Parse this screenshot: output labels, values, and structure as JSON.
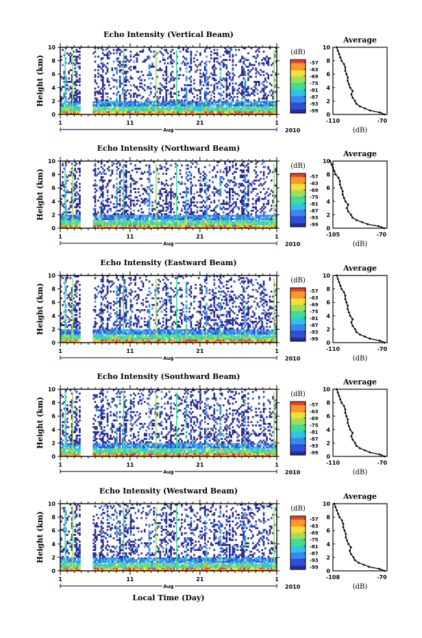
{
  "chart_data": [
    {
      "type": "heatmap",
      "title": "Echo Intensity (Vertical Beam)",
      "ylabel": "Height (km)",
      "ylim": [
        0,
        10
      ],
      "yticks": [
        "0",
        "2",
        "4",
        "6",
        "8",
        "10"
      ],
      "xticks": [
        "1",
        "11",
        "21",
        "1"
      ],
      "month_label": "Aug",
      "year_label": "2010",
      "colorbar": {
        "unit": "(dB)",
        "ticks": [
          "-57",
          "-63",
          "-69",
          "-75",
          "-81",
          "-87",
          "-93",
          "-99"
        ]
      },
      "average": {
        "title": "Average",
        "xlabel": "(dB)",
        "xticks": [
          "-110",
          "-70"
        ],
        "xlim": [
          -110,
          -66
        ],
        "yticks": [
          "0",
          "2",
          "4",
          "6",
          "8",
          "10"
        ],
        "ylim": [
          0,
          10
        ]
      }
    },
    {
      "type": "heatmap",
      "title": "Echo Intensity (Northward Beam)",
      "ylabel": "Height (km)",
      "ylim": [
        0,
        10
      ],
      "yticks": [
        "0",
        "2",
        "4",
        "6",
        "8",
        "10"
      ],
      "xticks": [
        "1",
        "11",
        "21",
        "1"
      ],
      "month_label": "Aug",
      "year_label": "2010",
      "colorbar": {
        "unit": "(dB)",
        "ticks": [
          "-57",
          "-63",
          "-69",
          "-75",
          "-81",
          "-87",
          "-93",
          "-99"
        ]
      },
      "average": {
        "title": "Average",
        "xlabel": "(dB)",
        "xticks": [
          "-105",
          "-70"
        ],
        "xlim": [
          -105,
          -66
        ],
        "yticks": [
          "0",
          "2",
          "4",
          "6",
          "8",
          "10"
        ],
        "ylim": [
          0,
          10
        ]
      }
    },
    {
      "type": "heatmap",
      "title": "Echo Intensity (Eastward Beam)",
      "ylabel": "Height (km)",
      "ylim": [
        0,
        10
      ],
      "yticks": [
        "0",
        "2",
        "4",
        "6",
        "8",
        "10"
      ],
      "xticks": [
        "1",
        "11",
        "21",
        "1"
      ],
      "month_label": "Aug",
      "year_label": "2010",
      "colorbar": {
        "unit": "(dB)",
        "ticks": [
          "-57",
          "-63",
          "-69",
          "-75",
          "-81",
          "-87",
          "-93",
          "-99"
        ]
      },
      "average": {
        "title": "Average",
        "xlabel": "(dB)",
        "xticks": [
          "-110",
          "-70"
        ],
        "xlim": [
          -110,
          -66
        ],
        "yticks": [
          "0",
          "2",
          "4",
          "6",
          "8",
          "10"
        ],
        "ylim": [
          0,
          10
        ]
      }
    },
    {
      "type": "heatmap",
      "title": "Echo Intensity (Southward Beam)",
      "ylabel": "Height (km)",
      "ylim": [
        0,
        10
      ],
      "yticks": [
        "0",
        "2",
        "4",
        "6",
        "8",
        "10"
      ],
      "xticks": [
        "1",
        "11",
        "21",
        "1"
      ],
      "month_label": "Aug",
      "year_label": "2010",
      "colorbar": {
        "unit": "(dB)",
        "ticks": [
          "-57",
          "-63",
          "-69",
          "-75",
          "-81",
          "-87",
          "-93",
          "-99"
        ]
      },
      "average": {
        "title": "Average",
        "xlabel": "(dB)",
        "xticks": [
          "-110",
          "-70"
        ],
        "xlim": [
          -110,
          -66
        ],
        "yticks": [
          "0",
          "2",
          "4",
          "6",
          "8",
          "10"
        ],
        "ylim": [
          0,
          10
        ]
      }
    },
    {
      "type": "heatmap",
      "title": "Echo Intensity (Westward Beam)",
      "ylabel": "Height (km)",
      "ylim": [
        0,
        10
      ],
      "yticks": [
        "0",
        "2",
        "4",
        "6",
        "8",
        "10"
      ],
      "xticks": [
        "1",
        "11",
        "21",
        "1"
      ],
      "month_label": "Aug",
      "year_label": "2010",
      "colorbar": {
        "unit": "(dB)",
        "ticks": [
          "-57",
          "-63",
          "-69",
          "-75",
          "-81",
          "-87",
          "-93",
          "-99"
        ]
      },
      "average": {
        "title": "Average",
        "xlabel": "(dB)",
        "xticks": [
          "-108",
          "-70"
        ],
        "xlim": [
          -108,
          -66
        ],
        "yticks": [
          "0",
          "2",
          "4",
          "6",
          "8",
          "10"
        ],
        "ylim": [
          0,
          10
        ]
      }
    }
  ],
  "average_profile": [
    [
      0.0,
      -68
    ],
    [
      0.3,
      -72
    ],
    [
      0.6,
      -80
    ],
    [
      0.9,
      -84
    ],
    [
      1.2,
      -88
    ],
    [
      1.6,
      -91
    ],
    [
      2.0,
      -92
    ],
    [
      2.5,
      -94
    ],
    [
      3.0,
      -95
    ],
    [
      3.5,
      -94
    ],
    [
      4.0,
      -96
    ],
    [
      4.5,
      -97
    ],
    [
      5.0,
      -98
    ],
    [
      5.5,
      -98
    ],
    [
      6.0,
      -99
    ],
    [
      6.5,
      -100
    ],
    [
      7.0,
      -100
    ],
    [
      7.5,
      -101
    ],
    [
      8.0,
      -103
    ],
    [
      8.5,
      -104
    ],
    [
      9.0,
      -105
    ],
    [
      9.5,
      -106
    ],
    [
      10.0,
      -107
    ]
  ],
  "x_axis_label": "Local Time (Day)",
  "colormap": [
    "#2b2c8c",
    "#2f4fd6",
    "#3c86f0",
    "#33c1e8",
    "#3fdc9a",
    "#9be05a",
    "#f2e03a",
    "#f79a2a",
    "#e8412a"
  ]
}
